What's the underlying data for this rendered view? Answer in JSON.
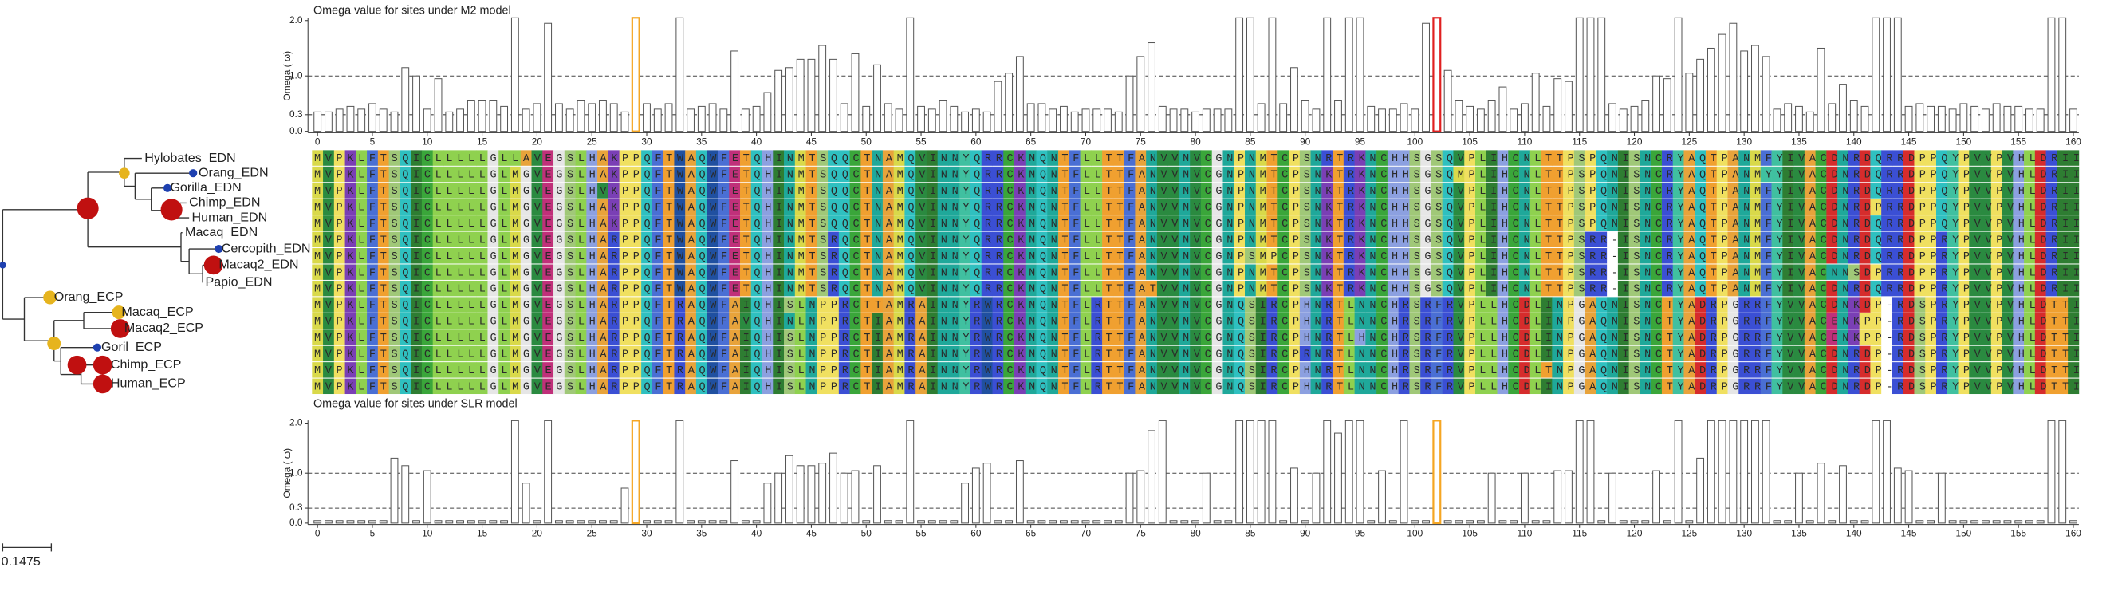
{
  "tree": {
    "leaves": [
      "Hylobates_EDN",
      "Orang_EDN",
      "Gorilla_EDN",
      "Chimp_EDN",
      "Human_EDN",
      "Macaq_EDN",
      "Cercopith_EDN",
      "Macaq2_EDN",
      "Papio_EDN",
      "Orang_ECP",
      "Macaq_ECP",
      "Macaq2_ECP",
      "Goril_ECP",
      "Chimp_ECP",
      "Human_ECP"
    ],
    "scale_label": "0.1475"
  },
  "alignment": {
    "rows": [
      "MVPKLFTSQICLLLLLGLLAVEGSLHAKPPQFTWAQWFETQHINMTSQQCTNAMQVINNYQRRCKNQNTFLLTTFANVVNVCGNPNMTCPSNRTRKNCHHSGSQVPLIHCNLTTPSPQNISNCRYAQTPANMFYIVACDNRDQRRDPPQYPVVPVHLDRII",
      "MVPKLFTSQICLLLLLGLMGVEGSLHAKPPQFTWAQWFETQHINMTSQQCTNAMQVINNYQRRCKNQNTFLLTTFANVVNVCGNPNMTCPSNKTRKNCHHSGSQMPLIHCNLTTPSPQNISNCRYAQTPANMYYIVACDNRDQRRDPPQYPVVPVHLDRII",
      "MVPKLFTSQICLLLLLGLMGVEGSLHVKPPQFTWAQWFETQHINMTSQQCTNAMQVINNYQRRCKNQNTFLLTTFANVVNVCGNPNMTCPSNKTRKNCHHSGSQVPLIHCNLTTPSPQNISNCRYAQTPANMFYIVACDNRDQRRDPPQYPVVPVHLDRII",
      "MVPKLFTSQICLLLLLGLMGVEGSLHAKPPQFTWAQWFETQHINMTSQQCTNAMQVINNYQRRCKNQNTFLLTTFANVVNVCGNPNMTCPSNKTRKNCHHSGSQVPLIHCNLTTPSPQNISNCRYAQTPANMFYIVACDNRDPRRDPPQYPVVPVHLDRII",
      "MVPKLFTSQICLLLLLGLMGVEGSLHAKPPQFTWAQWFETQHINMTSQQCTNAMQVINNYQRRCKNQNTFLLTTFANVVNVCGNPNMTCPSNKTRKNCHHSGSQVPLIHCNLTTPSPQNISNCRYAQTPANMFYIVACDNRDQRRDPPQYPVVPVHLDRII",
      "MVPKLFTSQICLLLLLGLMGVEGSLHARPPQFTWAQWFETQHINMTSRQCTNAMQVINNYQRRCKNQNTFLLTTFANVVNVCGNPNMTCPSNKTRKNCHHSGSQVPLIHCNLTTPSRR-ISNCRYAQTPANMFYIVACDNRDQRRDPPRYPVVPVHLDRII",
      "MVPKLFTSQICLLLLLGLMGVEGSLHARPPQFTWAQWFETQHINMTSRQCTNAMQVINNYQRRCKNQNTFLLTTFANVVNVCGNPSMPCPSNKTRKNCHHSGSQVPLIHCNLTTPSRR-ISNCRYAQTPANMFYIVACDNRDQRRDPPRYPVVPVHLDRII",
      "MVPKLFTSQICLLLLLGLMGVEGSLHARPPQFTWAQWFETQHINMTSRQCTNAMQVINNYQRRCKNQNTFLLTTFANVVNVCGNPNMTCPSNKTRKNCHHSGSQVPLIHCNLTTPSRR-ISNCRYAQTPANMFYIVACNNSDPRRDPPRYPVVPVHLDRII",
      "MVPKLFTSQICLLLLLGLMGVEGSLHARPPQFTWAQWFETQHINMTSRQCTNAMQVINNYQRRCKNQNTFLLTTFATVVNVCGNPNMTCPSNKTRKNCHHSGSQVPLIHCNLTTPSRR-ISNCRYAQTPANMFYIVACDNRDQRRDPPRYPVVPVHLDRII",
      "MVPKLFTSQICLLLLLGLMGVEGSLHARPPQFTRAQWFAIQHISLNPPRCTTAMRAINNYRWRCKNQNTFLRTTFANVVNVCGNQSIRCPHNRTLNNCHRSRFRVPLLHCDLINPGAQNISNCTYADRPGRRFYVVACDNKDP-RDSPRYPVVPVHLDTTI",
      "MVPKLFTSQICLLLLLGLMGVEGSLHARPPQFTRAQWFAVQHINLNPPRCTIAMRAINNYRWRCKNQNTFLRTTFANVVNVCGNQSIRCPHNRTLNNCHRSRFRVPLLHCDLINPGAQNISNCTYADRPGRRFYVVACENKPP-RDSPRYPVVPVHLDTTI",
      "MVPKLFTSQICLLLLLGLMGVEGSLHARPPQFTRAQWFAIQHISLNPPRCTIAMRAINNYRWRCKNQNTFLRTTFANVVNVCGNQSIRCPHNRTLHNCHRSRFRVPLLHCDLINPGAQNISNCTYADRPGRRFYVVACENKPP-RDSPRYPVVPVHLDTTI",
      "MVPKLFTSQICLLLLLGLMGVEGSLHARPPQFTRAQWFAIQHISLNPPRCTIAMRAINNYRWRCKNQNTFLRTTFANVVNVCGNQSIRCPRNRTLNNCHRSRFRVPLLHCDLINPGAQNISNCTYADRPGRRFYVVACDNRDP-RDSPRYPVVPVHLDTTI",
      "MVPKLFTSQICLLLLLGLMGVEGSLHARPPQFTRAQWFAIQHISLNPPRCTIAMRAINNYRWRCKNQNTFLRTTFANVVNVCGNQSIRCPHNRTLNNCHRSRFRVPLLHCDLTNPGAQNISNCTYADRPGRRFYVVACDNRDP-RDSPRYPVVPVHLDTTI",
      "MVPKLFTSQICLLLLLGLMGVEGSLHARPPQFTRAQWFAIQHISLNPPRCTIAMRAINNYRWRCKNQNTFLRTTFANVVNVCGNQSIRCPHNRTLNNCHRSRFRVPLLHCDLINPGAQNISNCTYADRPGRRFYVVACDNRDP-RDSPRYPVVPVHLDTTI"
    ]
  },
  "chart_data": [
    {
      "type": "bar",
      "title": "Omega value for sites under M2 model",
      "ylabel": "Omega ( ω)",
      "color": "#ffffff",
      "edge_color": "#555555",
      "x": [
        0,
        1,
        2,
        3,
        4,
        5,
        6,
        7,
        8,
        9,
        10,
        11,
        12,
        13,
        14,
        15,
        16,
        17,
        18,
        19,
        20,
        21,
        22,
        23,
        24,
        25,
        26,
        27,
        28,
        29,
        30,
        31,
        32,
        33,
        34,
        35,
        36,
        37,
        38,
        39,
        40,
        41,
        42,
        43,
        44,
        45,
        46,
        47,
        48,
        49,
        50,
        51,
        52,
        53,
        54,
        55,
        56,
        57,
        58,
        59,
        60,
        61,
        62,
        63,
        64,
        65,
        66,
        67,
        68,
        69,
        70,
        71,
        72,
        73,
        74,
        75,
        76,
        77,
        78,
        79,
        80,
        81,
        82,
        83,
        84,
        85,
        86,
        87,
        88,
        89,
        90,
        91,
        92,
        93,
        94,
        95,
        96,
        97,
        98,
        99,
        100,
        101,
        102,
        103,
        104,
        105,
        106,
        107,
        108,
        109,
        110,
        111,
        112,
        113,
        114,
        115,
        116,
        117,
        118,
        119,
        120,
        121,
        122,
        123,
        124,
        125,
        126,
        127,
        128,
        129,
        130,
        131,
        132,
        133,
        134,
        135,
        136,
        137,
        138,
        139,
        140,
        141,
        142,
        143,
        144,
        145,
        146,
        147,
        148,
        149,
        150,
        151,
        152,
        153,
        154,
        155,
        156,
        157,
        158,
        159,
        160
      ],
      "values": [
        0.35,
        0.35,
        0.4,
        0.45,
        0.4,
        0.5,
        0.4,
        0.35,
        1.15,
        1.0,
        0.4,
        0.95,
        0.35,
        0.4,
        0.55,
        0.55,
        0.55,
        0.45,
        2.05,
        0.4,
        0.5,
        1.95,
        0.5,
        0.4,
        0.55,
        0.5,
        0.55,
        0.5,
        0.35,
        2.05,
        0.5,
        0.4,
        0.5,
        2.05,
        0.4,
        0.45,
        0.5,
        0.4,
        1.45,
        0.4,
        0.45,
        0.7,
        1.1,
        1.15,
        1.3,
        1.3,
        1.55,
        1.3,
        0.5,
        1.4,
        0.45,
        1.2,
        0.5,
        0.4,
        2.05,
        0.45,
        0.4,
        0.55,
        0.45,
        0.35,
        0.4,
        0.35,
        0.9,
        1.05,
        1.35,
        0.5,
        0.5,
        0.4,
        0.45,
        0.35,
        0.4,
        0.4,
        0.4,
        0.35,
        1.0,
        1.35,
        1.6,
        0.45,
        0.4,
        0.4,
        0.35,
        0.4,
        0.4,
        0.4,
        2.05,
        2.05,
        0.5,
        2.05,
        0.5,
        1.15,
        0.55,
        0.4,
        2.05,
        0.55,
        2.05,
        2.05,
        0.45,
        0.4,
        0.4,
        0.5,
        0.4,
        1.95,
        2.05,
        1.1,
        0.55,
        0.45,
        0.4,
        0.55,
        0.8,
        0.4,
        0.5,
        1.05,
        0.45,
        0.95,
        0.9,
        2.05,
        2.05,
        2.05,
        0.5,
        0.4,
        0.45,
        0.55,
        1.0,
        0.95,
        2.05,
        1.05,
        1.3,
        1.5,
        1.75,
        1.95,
        1.45,
        1.55,
        1.35,
        0.4,
        0.5,
        0.45,
        0.35,
        1.5,
        0.5,
        0.85,
        0.55,
        0.45,
        2.05,
        2.05,
        2.05,
        0.45,
        0.5,
        0.45,
        0.45,
        0.4,
        0.5,
        0.45,
        0.4,
        0.5,
        0.45,
        0.45,
        0.4,
        0.4,
        2.05,
        2.05,
        0.4
      ],
      "highlight": [
        {
          "x": 29,
          "color": "#f5a623"
        },
        {
          "x": 102,
          "color": "#e02020"
        }
      ],
      "xlim": [
        -0.5,
        160.5
      ],
      "xticks": [
        0,
        5,
        10,
        15,
        20,
        25,
        30,
        35,
        40,
        45,
        50,
        55,
        60,
        65,
        70,
        75,
        80,
        85,
        90,
        95,
        100,
        105,
        110,
        115,
        120,
        125,
        130,
        135,
        140,
        145,
        150,
        155,
        160
      ],
      "ylim": [
        0,
        2
      ],
      "yticks": [
        {
          "value": 0,
          "label": "0.0"
        },
        0.3,
        {
          "value": 1,
          "label": "1.0"
        },
        {
          "value": 2,
          "label": "2.0"
        }
      ],
      "ref_lines": [
        0.3,
        1
      ]
    },
    {
      "type": "bar",
      "title": "Omega value for sites under SLR model",
      "ylabel": "Omega ( ω)",
      "color": "#ffffff",
      "edge_color": "#555555",
      "x": [
        0,
        1,
        2,
        3,
        4,
        5,
        6,
        7,
        8,
        9,
        10,
        11,
        12,
        13,
        14,
        15,
        16,
        17,
        18,
        19,
        20,
        21,
        22,
        23,
        24,
        25,
        26,
        27,
        28,
        29,
        30,
        31,
        32,
        33,
        34,
        35,
        36,
        37,
        38,
        39,
        40,
        41,
        42,
        43,
        44,
        45,
        46,
        47,
        48,
        49,
        50,
        51,
        52,
        53,
        54,
        55,
        56,
        57,
        58,
        59,
        60,
        61,
        62,
        63,
        64,
        65,
        66,
        67,
        68,
        69,
        70,
        71,
        72,
        73,
        74,
        75,
        76,
        77,
        78,
        79,
        80,
        81,
        82,
        83,
        84,
        85,
        86,
        87,
        88,
        89,
        90,
        91,
        92,
        93,
        94,
        95,
        96,
        97,
        98,
        99,
        100,
        101,
        102,
        103,
        104,
        105,
        106,
        107,
        108,
        109,
        110,
        111,
        112,
        113,
        114,
        115,
        116,
        117,
        118,
        119,
        120,
        121,
        122,
        123,
        124,
        125,
        126,
        127,
        128,
        129,
        130,
        131,
        132,
        133,
        134,
        135,
        136,
        137,
        138,
        139,
        140,
        141,
        142,
        143,
        144,
        145,
        146,
        147,
        148,
        149,
        150,
        151,
        152,
        153,
        154,
        155,
        156,
        157,
        158,
        159,
        160
      ],
      "values": [
        0.05,
        0.05,
        0.05,
        0.05,
        0.05,
        0.05,
        0.05,
        1.3,
        1.15,
        0.05,
        1.05,
        0.05,
        0.05,
        0.05,
        0.05,
        0.05,
        0.05,
        0.05,
        2.05,
        0.8,
        0.05,
        2.05,
        0.05,
        0.05,
        0.05,
        0.05,
        0.05,
        0.05,
        0.7,
        2.05,
        0.05,
        0.05,
        0.05,
        2.05,
        0.05,
        0.05,
        0.05,
        0.05,
        1.25,
        0.05,
        0.05,
        0.8,
        1.0,
        1.35,
        1.15,
        1.15,
        1.2,
        1.4,
        1.0,
        1.05,
        0.05,
        1.15,
        0.05,
        0.05,
        2.05,
        0.05,
        0.05,
        0.05,
        0.05,
        0.8,
        1.1,
        1.2,
        0.05,
        0.05,
        1.25,
        0.05,
        0.05,
        0.05,
        0.05,
        0.05,
        0.05,
        0.05,
        0.05,
        0.05,
        1.0,
        1.05,
        1.85,
        2.05,
        0.05,
        0.05,
        0.05,
        1.0,
        0.05,
        0.05,
        2.05,
        2.05,
        2.05,
        2.05,
        0.05,
        1.1,
        0.05,
        1.0,
        2.05,
        1.8,
        2.05,
        2.05,
        0.05,
        1.05,
        0.05,
        2.05,
        0.05,
        0.05,
        2.05,
        0.05,
        0.05,
        0.05,
        0.05,
        1.0,
        0.05,
        0.05,
        1.0,
        0.05,
        0.05,
        1.05,
        1.05,
        2.05,
        2.05,
        0.05,
        1.0,
        0.05,
        0.05,
        0.05,
        1.05,
        0.05,
        2.05,
        0.05,
        1.3,
        2.05,
        2.05,
        2.05,
        2.05,
        2.05,
        2.05,
        0.05,
        0.05,
        1.0,
        0.05,
        1.2,
        0.05,
        1.15,
        0.05,
        0.05,
        2.05,
        2.05,
        1.1,
        1.05,
        0.05,
        0.05,
        1.0,
        0.05,
        0.05,
        0.05,
        0.05,
        0.05,
        0.05,
        0.05,
        0.05,
        0.05,
        2.05,
        2.05,
        0.05
      ],
      "highlight": [
        {
          "x": 29,
          "color": "#f5a623"
        },
        {
          "x": 102,
          "color": "#f5a623"
        }
      ],
      "xlim": [
        -0.5,
        160.5
      ],
      "xticks": [
        0,
        5,
        10,
        15,
        20,
        25,
        30,
        35,
        40,
        45,
        50,
        55,
        60,
        65,
        70,
        75,
        80,
        85,
        90,
        95,
        100,
        105,
        110,
        115,
        120,
        125,
        130,
        135,
        140,
        145,
        150,
        155,
        160
      ],
      "ylim": [
        0,
        2
      ],
      "yticks": [
        {
          "value": 0,
          "label": "0.0"
        },
        0.3,
        {
          "value": 1,
          "label": "1.0"
        },
        {
          "value": 2,
          "label": "2.0"
        }
      ],
      "ref_lines": [
        0.3,
        1
      ]
    }
  ]
}
